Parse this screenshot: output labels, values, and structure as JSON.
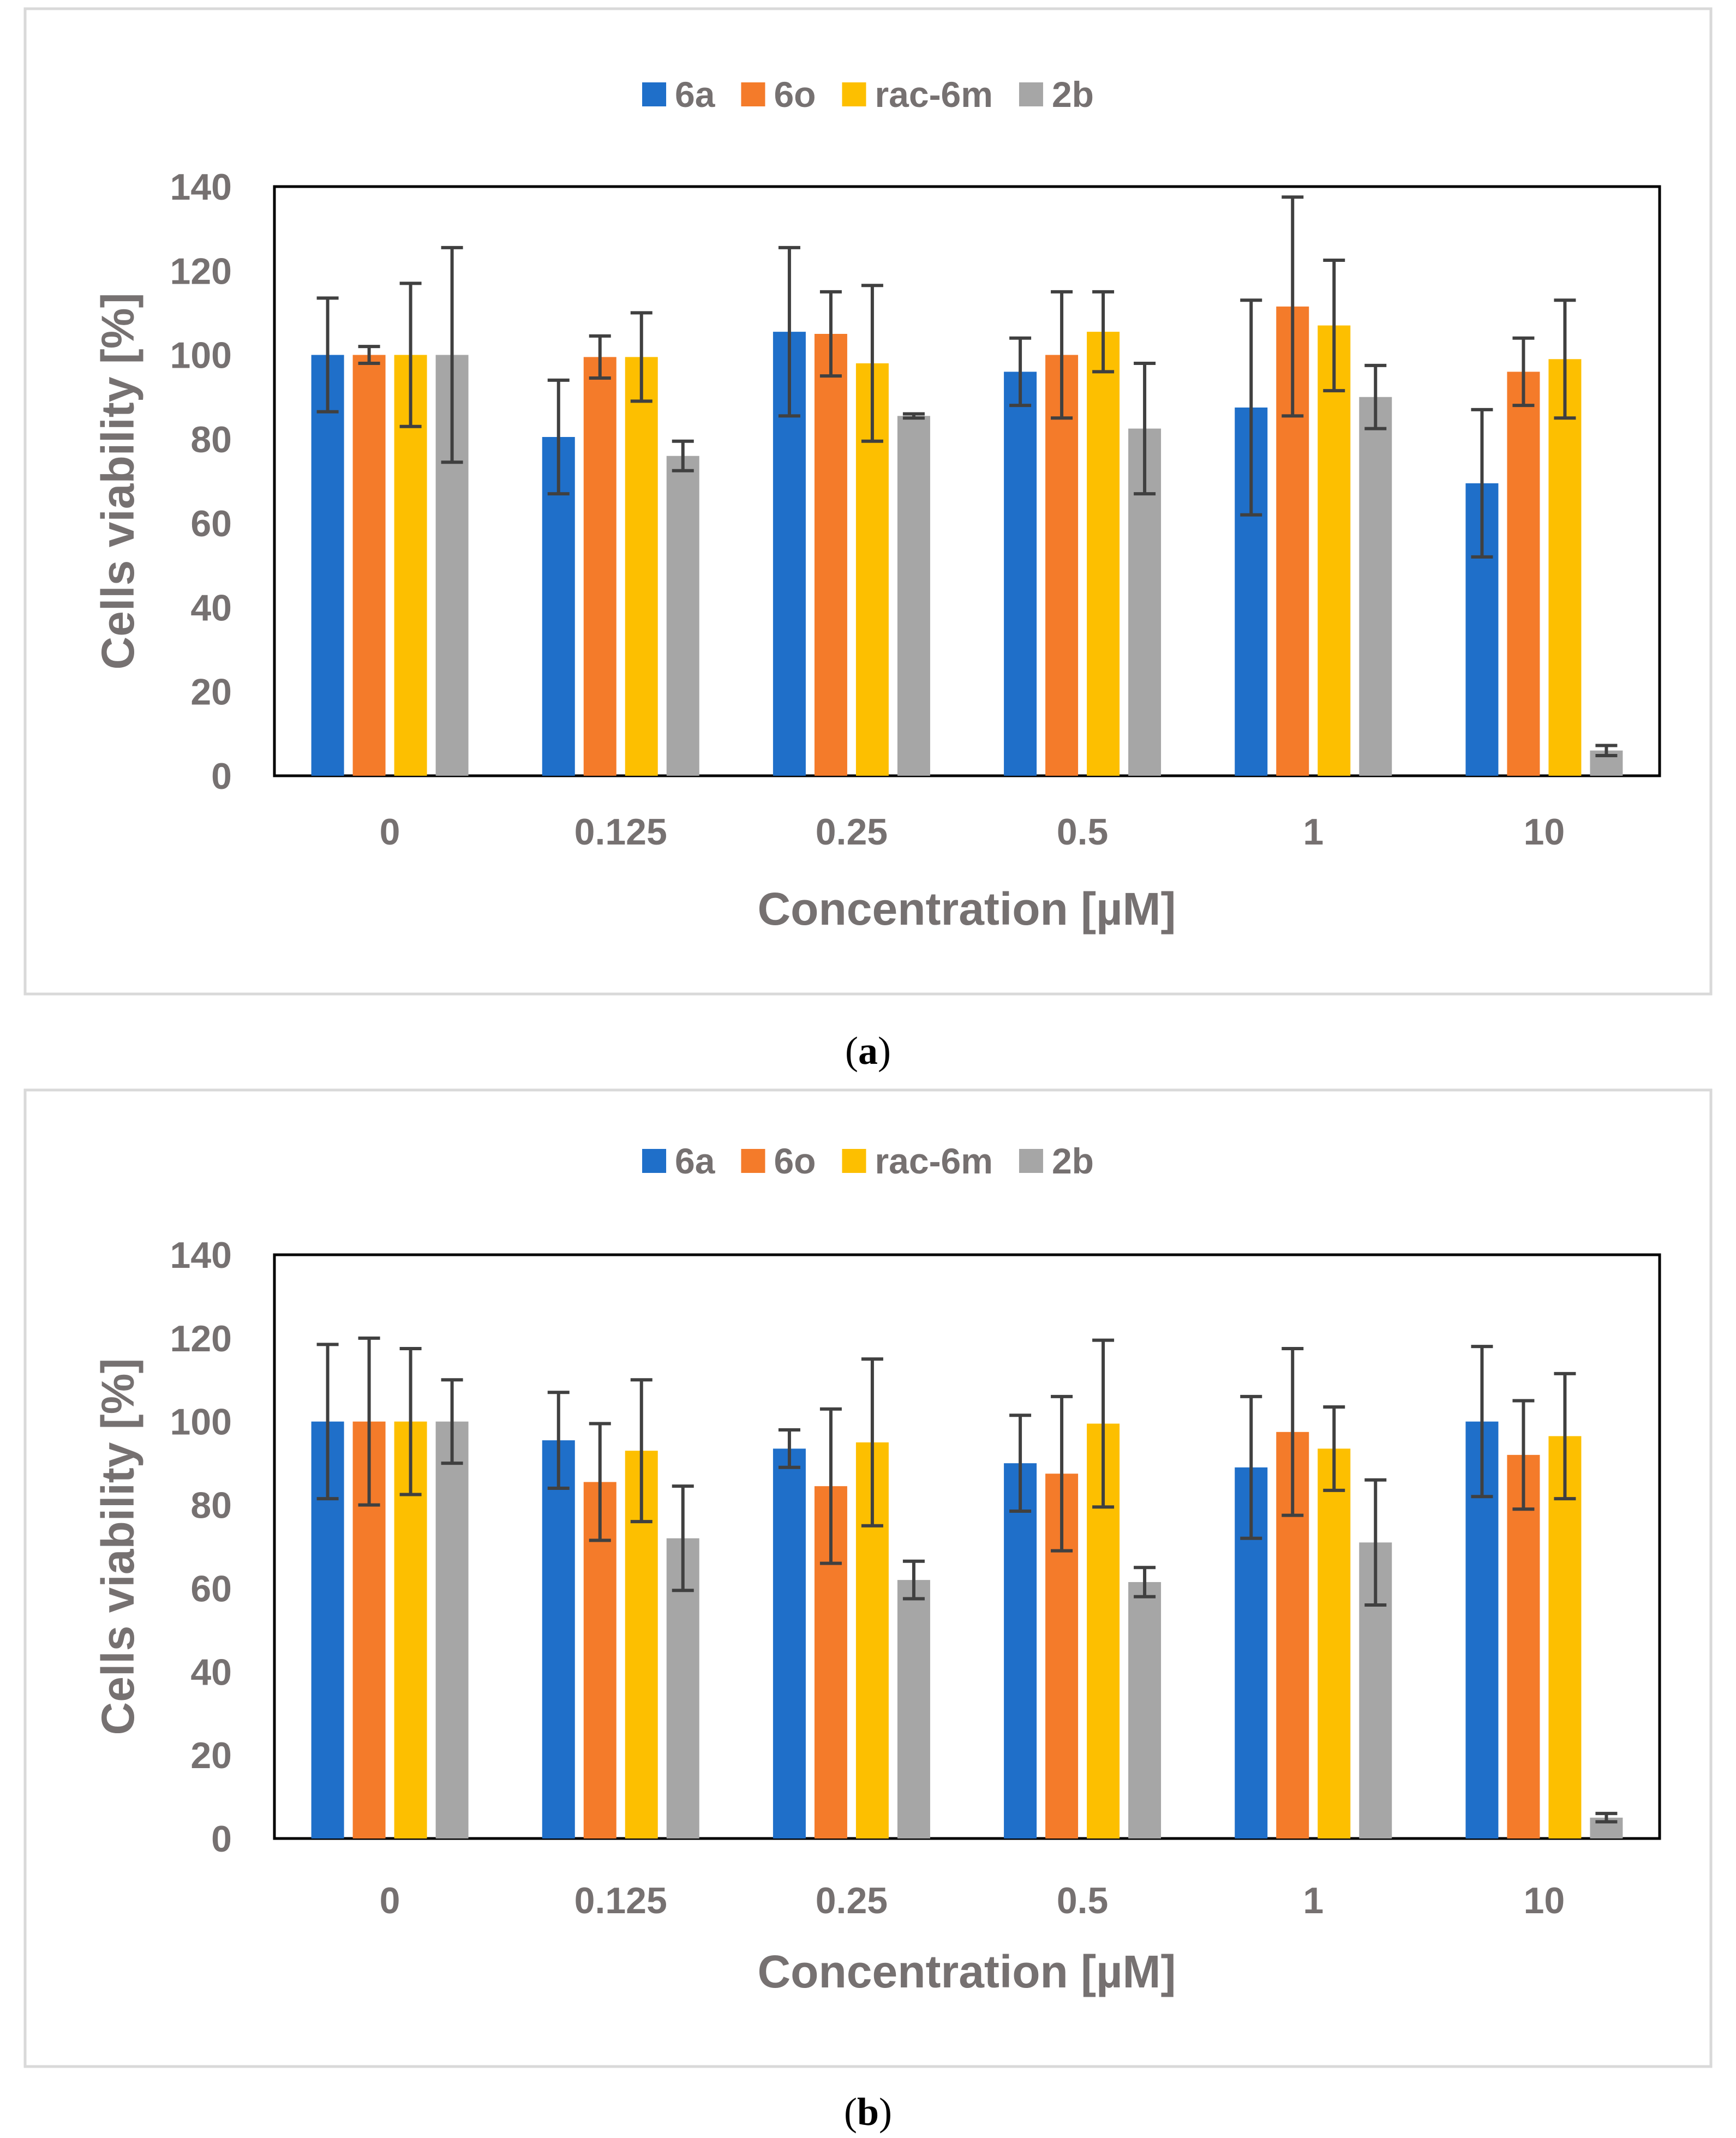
{
  "colors": {
    "6a": "#1f6fc9",
    "6o": "#f47b2a",
    "rac-6m": "#fdbf00",
    "2b": "#a6a6a6",
    "axis_text": "#767171",
    "error_bar": "#404040",
    "panel_border": "#d9d9d9",
    "plot_border": "#000000"
  },
  "chart_data": [
    {
      "type": "bar",
      "panel_caption": "(a)",
      "caption_bold_letter": "a",
      "xlabel": "Concentration [µM]",
      "ylabel": "Cells viability [%]",
      "ylim": [
        0,
        140
      ],
      "yticks": [
        0,
        20,
        40,
        60,
        80,
        100,
        120,
        140
      ],
      "legend_position": "top",
      "categories": [
        "0",
        "0.125",
        "0.25",
        "0.5",
        "1",
        "10"
      ],
      "series": [
        {
          "name": "6a",
          "values": [
            100,
            80.5,
            105.5,
            96,
            87.5,
            69.5
          ],
          "errors": [
            13.5,
            13.5,
            20,
            8,
            25.5,
            17.5
          ]
        },
        {
          "name": "6o",
          "values": [
            100,
            99.5,
            105,
            100,
            111.5,
            96
          ],
          "errors": [
            2,
            5,
            10,
            15,
            26,
            8
          ]
        },
        {
          "name": "rac-6m",
          "values": [
            100,
            99.5,
            98,
            105.5,
            107,
            99
          ],
          "errors": [
            17,
            10.5,
            18.5,
            9.5,
            15.5,
            14
          ]
        },
        {
          "name": "2b",
          "values": [
            100,
            76,
            85.5,
            82.5,
            90,
            6
          ],
          "errors": [
            25.5,
            3.5,
            0.5,
            15.5,
            7.5,
            1.2
          ]
        }
      ]
    },
    {
      "type": "bar",
      "panel_caption": "(b)",
      "caption_bold_letter": "b",
      "xlabel": "Concentration [µM]",
      "ylabel": "Cells viability [%]",
      "ylim": [
        0,
        140
      ],
      "yticks": [
        0,
        20,
        40,
        60,
        80,
        100,
        120,
        140
      ],
      "legend_position": "top",
      "categories": [
        "0",
        "0.125",
        "0.25",
        "0.5",
        "1",
        "10"
      ],
      "series": [
        {
          "name": "6a",
          "values": [
            100,
            95.5,
            93.5,
            90,
            89,
            100
          ],
          "errors": [
            18.5,
            11.5,
            4.5,
            11.5,
            17,
            18
          ]
        },
        {
          "name": "6o",
          "values": [
            100,
            85.5,
            84.5,
            87.5,
            97.5,
            92
          ],
          "errors": [
            20,
            14,
            18.5,
            18.5,
            20,
            13
          ]
        },
        {
          "name": "rac-6m",
          "values": [
            100,
            93,
            95,
            99.5,
            93.5,
            96.5
          ],
          "errors": [
            17.5,
            17,
            20,
            20,
            10,
            15
          ]
        },
        {
          "name": "2b",
          "values": [
            100,
            72,
            62,
            61.5,
            71,
            5
          ],
          "errors": [
            10,
            12.5,
            4.5,
            3.5,
            15,
            1
          ]
        }
      ]
    }
  ]
}
